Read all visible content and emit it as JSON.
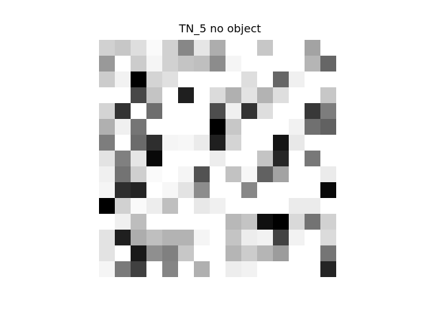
{
  "chart_data": {
    "type": "heatmap",
    "title": "TN_5 no object",
    "xlabel": "",
    "ylabel": "",
    "axes_visible": false,
    "colormap": "gray_r",
    "value_range": [
      0,
      1
    ],
    "rows": 16,
    "cols": 16,
    "values": [
      [
        0.18,
        0.22,
        0.13,
        0.02,
        0.18,
        0.47,
        0.1,
        0.32,
        0.0,
        0.0,
        0.22,
        0.0,
        0.0,
        0.36,
        0.0,
        0.0
      ],
      [
        0.4,
        0.0,
        0.2,
        0.04,
        0.18,
        0.23,
        0.25,
        0.45,
        0.04,
        0.0,
        0.0,
        0.0,
        0.0,
        0.29,
        0.6,
        0.0
      ],
      [
        0.2,
        0.05,
        1.0,
        0.17,
        0.12,
        0.0,
        0.0,
        0.0,
        0.0,
        0.13,
        0.0,
        0.6,
        0.06,
        0.0,
        0.0,
        0.0
      ],
      [
        0.0,
        0.0,
        0.72,
        0.23,
        0.0,
        0.88,
        0.0,
        0.14,
        0.31,
        0.11,
        0.3,
        0.13,
        0.0,
        0.0,
        0.22,
        0.0
      ],
      [
        0.17,
        0.8,
        0.0,
        0.57,
        0.0,
        0.0,
        0.0,
        0.7,
        0.06,
        0.8,
        0.13,
        0.0,
        0.0,
        0.78,
        0.51,
        0.0
      ],
      [
        0.31,
        0.06,
        0.54,
        0.0,
        0.0,
        0.0,
        0.0,
        1.0,
        0.22,
        0.0,
        0.0,
        0.0,
        0.05,
        0.56,
        0.62,
        0.0
      ],
      [
        0.51,
        0.0,
        0.58,
        0.82,
        0.04,
        0.03,
        0.08,
        0.88,
        0.17,
        0.0,
        0.0,
        0.92,
        0.09,
        0.0,
        0.0,
        0.0
      ],
      [
        0.11,
        0.5,
        0.1,
        0.97,
        0.0,
        0.0,
        0.0,
        0.07,
        0.0,
        0.0,
        0.23,
        0.85,
        0.0,
        0.53,
        0.0,
        0.0
      ],
      [
        0.06,
        0.55,
        0.19,
        0.02,
        0.0,
        0.04,
        0.68,
        0.0,
        0.24,
        0.03,
        0.62,
        0.36,
        0.0,
        0.0,
        0.08,
        0.0
      ],
      [
        0.04,
        0.82,
        0.86,
        0.0,
        0.03,
        0.11,
        0.45,
        0.0,
        0.0,
        0.47,
        0.0,
        0.0,
        0.0,
        0.0,
        0.97,
        0.0
      ],
      [
        1.0,
        0.18,
        0.02,
        0.07,
        0.25,
        0.0,
        0.09,
        0.06,
        0.0,
        0.0,
        0.0,
        0.0,
        0.08,
        0.08,
        0.0,
        0.0
      ],
      [
        0.0,
        0.06,
        0.26,
        0.0,
        0.0,
        0.0,
        0.0,
        0.0,
        0.28,
        0.23,
        0.94,
        1.0,
        0.15,
        0.55,
        0.18,
        0.0
      ],
      [
        0.11,
        0.88,
        0.32,
        0.25,
        0.3,
        0.3,
        0.04,
        0.0,
        0.23,
        0.07,
        0.05,
        0.74,
        0.05,
        0.0,
        0.14,
        0.0
      ],
      [
        0.11,
        0.0,
        0.9,
        0.44,
        0.5,
        0.22,
        0.0,
        0.0,
        0.29,
        0.2,
        0.29,
        0.39,
        0.0,
        0.0,
        0.54,
        0.0
      ],
      [
        0.04,
        0.52,
        0.75,
        0.0,
        0.48,
        0.0,
        0.31,
        0.0,
        0.07,
        0.05,
        0.0,
        0.0,
        0.0,
        0.0,
        0.86,
        0.0
      ],
      [
        0.0,
        0.0,
        0.0,
        0.0,
        0.0,
        0.0,
        0.0,
        0.0,
        0.0,
        0.0,
        0.0,
        0.0,
        0.0,
        0.0,
        0.0,
        0.0
      ]
    ]
  }
}
